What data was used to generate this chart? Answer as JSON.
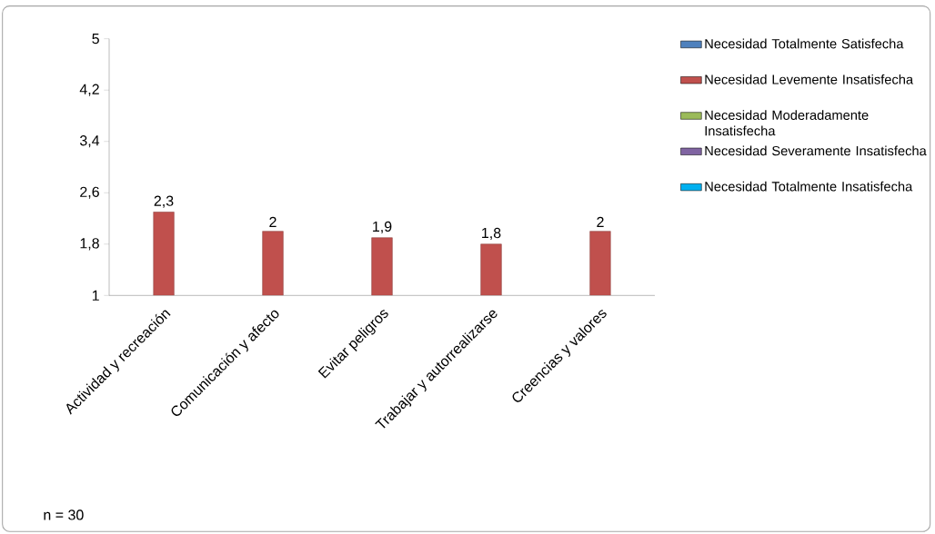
{
  "chart_data": {
    "type": "bar",
    "categories": [
      "Actividad y recreación",
      "Comunicación y afecto",
      "Evitar peligros",
      "Trabajar y autorrealizarse",
      "Creencias y valores"
    ],
    "series": [
      {
        "name": "Necesidad Totalmente Satisfecha",
        "color": "#4f81bd",
        "values": [
          null,
          null,
          null,
          null,
          null
        ]
      },
      {
        "name": "Necesidad Levemente Insatisfecha",
        "color": "#c0504d",
        "values": [
          2.3,
          2,
          1.9,
          1.8,
          2
        ],
        "value_labels": [
          "2,3",
          "2",
          "1,9",
          "1,8",
          "2"
        ]
      },
      {
        "name": "Necesidad Moderadamente Insatisfecha",
        "color": "#9bbb59",
        "values": [
          null,
          null,
          null,
          null,
          null
        ]
      },
      {
        "name": "Necesidad Severamente Insatisfecha",
        "color": "#8064a2",
        "values": [
          null,
          null,
          null,
          null,
          null
        ]
      },
      {
        "name": "Necesidad Totalmente Insatisfecha",
        "color": "#00b0f0",
        "values": [
          null,
          null,
          null,
          null,
          null
        ]
      }
    ],
    "ylim": [
      1,
      5
    ],
    "yticks": [
      1,
      {
        "value": 1.8,
        "label": "1,8"
      },
      {
        "value": 2.6,
        "label": "2,6"
      },
      {
        "value": 3.4,
        "label": "3,4"
      },
      {
        "value": 4.2,
        "label": "4,2"
      },
      5
    ],
    "grid": false,
    "legend": "right",
    "annotations": [
      "n = 30"
    ]
  }
}
